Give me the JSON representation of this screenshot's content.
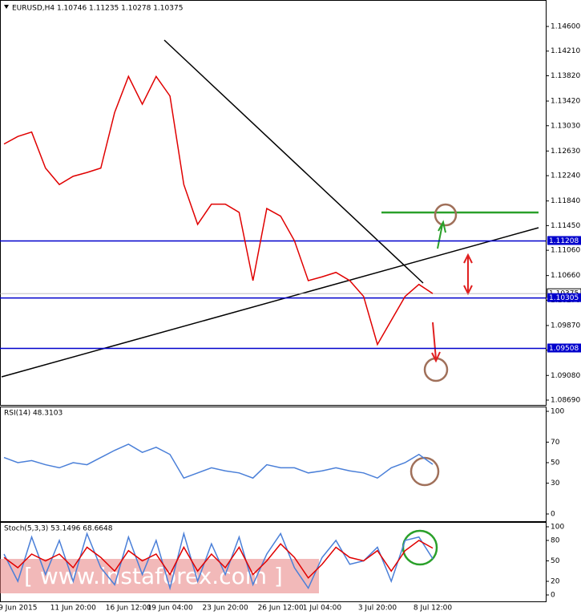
{
  "chart_data": [
    {
      "type": "line",
      "title": "EURUSD,H4 1.10746 1.11235 1.10278 1.10375",
      "color": "#e00000",
      "categories": [
        null,
        "9 Jun 2015",
        null,
        null,
        null,
        "11 Jun 20:00",
        null,
        null,
        null,
        "16 Jun 12:00",
        null,
        null,
        "19 Jun 04:00",
        null,
        null,
        null,
        "23 Jun 20:00",
        null,
        null,
        null,
        "26 Jun 12:00",
        null,
        null,
        "1 Jul 04:00",
        null,
        null,
        null,
        "3 Jul 20:00",
        null,
        null,
        null,
        "8 Jul 12:00"
      ],
      "values": [
        1.1274,
        1.1286,
        1.1293,
        1.1236,
        1.121,
        1.1223,
        1.1229,
        1.1236,
        1.1324,
        1.1381,
        1.1337,
        1.1381,
        1.135,
        1.121,
        1.1147,
        1.1179,
        1.1179,
        1.1166,
        1.1058,
        1.1172,
        1.116,
        1.1121,
        1.1058,
        1.1064,
        1.1071,
        1.1058,
        1.1033,
        1.0957,
        1.0995,
        1.1033,
        1.1052,
        1.10375
      ],
      "ylim": [
        1.08614,
        1.14993
      ],
      "yticks": [
        {
          "value": 1.146,
          "label": "1.14600"
        },
        {
          "value": 1.1421,
          "label": "1.14210"
        },
        {
          "value": 1.1382,
          "label": "1.13820"
        },
        {
          "value": 1.1342,
          "label": "1.13420"
        },
        {
          "value": 1.1303,
          "label": "1.13030"
        },
        {
          "value": 1.1263,
          "label": "1.12630"
        },
        {
          "value": 1.1224,
          "label": "1.12240"
        },
        {
          "value": 1.1184,
          "label": "1.11840"
        },
        {
          "value": 1.1145,
          "label": "1.11450"
        },
        {
          "value": 1.1106,
          "label": "1.11060"
        },
        {
          "value": 1.1066,
          "label": "1.10660"
        },
        {
          "value": 1.1027,
          "label": "1.10270"
        },
        {
          "value": 1.0987,
          "label": "1.09870"
        },
        {
          "value": 1.0948,
          "label": "1.09480"
        },
        {
          "value": 1.0908,
          "label": "1.09080"
        },
        {
          "value": 1.0869,
          "label": "1.08690"
        }
      ],
      "levels": [
        {
          "value": 1.11208,
          "label": "1.11208"
        },
        {
          "value": 1.10305,
          "label": "1.10305"
        },
        {
          "value": 1.09508,
          "label": "1.09508"
        }
      ],
      "current_price": {
        "value": 1.10375,
        "label": "1.10375"
      },
      "watermark": "[ www.instaforex.com ]"
    },
    {
      "type": "line",
      "title": "RSI(14) 48.3103",
      "color": "#4a7fd8",
      "values": [
        55,
        50,
        52,
        48,
        45,
        50,
        48,
        55,
        62,
        68,
        60,
        65,
        58,
        35,
        40,
        45,
        42,
        40,
        35,
        48,
        45,
        45,
        40,
        42,
        45,
        42,
        40,
        35,
        45,
        50,
        58,
        48.3103
      ],
      "ylim": [
        0,
        100
      ],
      "yticks": [
        100,
        70,
        50,
        30,
        0
      ]
    },
    {
      "type": "line",
      "title": "Stoch(5,3,3) 53.1496 68.6648",
      "series": [
        {
          "color": "#4a7fd8",
          "values": [
            60,
            20,
            85,
            30,
            80,
            20,
            90,
            40,
            15,
            85,
            30,
            80,
            10,
            90,
            20,
            75,
            30,
            85,
            15,
            60,
            90,
            40,
            10,
            55,
            80,
            45,
            50,
            70,
            20,
            80,
            85,
            53.1496
          ]
        },
        {
          "color": "#e00000",
          "values": [
            55,
            40,
            60,
            50,
            60,
            40,
            70,
            55,
            35,
            65,
            50,
            60,
            30,
            70,
            35,
            60,
            40,
            70,
            30,
            50,
            75,
            55,
            25,
            45,
            70,
            55,
            50,
            65,
            35,
            65,
            80,
            68.6648
          ]
        }
      ],
      "ylim": [
        0,
        100
      ],
      "yticks": [
        100,
        80,
        50,
        20,
        0
      ]
    }
  ]
}
